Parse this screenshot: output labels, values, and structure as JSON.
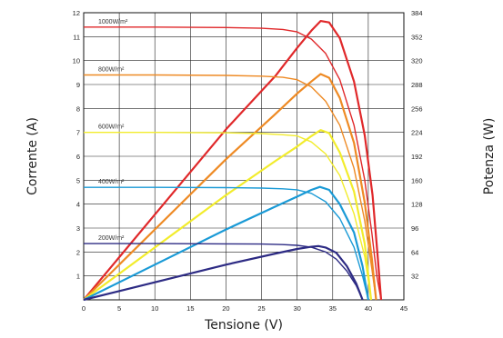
{
  "chart_data": {
    "type": "line",
    "xlabel": "Tensione (V)",
    "ylabel_left": "Corrente (A)",
    "ylabel_right": "Potenza (W)",
    "xlim": [
      0,
      45
    ],
    "ylim_left": [
      0,
      12
    ],
    "ylim_right": [
      0,
      384
    ],
    "x_ticks": [
      0,
      5,
      10,
      15,
      20,
      25,
      30,
      35,
      40,
      45
    ],
    "y_left_ticks": [
      1,
      2,
      3,
      4,
      5,
      6,
      7,
      8,
      9,
      10,
      11,
      12
    ],
    "y_right_ticks": [
      32,
      64,
      96,
      128,
      160,
      192,
      224,
      256,
      288,
      320,
      352,
      384
    ],
    "grid": true,
    "series": [
      {
        "name": "1000W/m²",
        "label": "1000W/m²",
        "color": "#e0282a",
        "current": {
          "x": [
            0,
            10,
            20,
            25,
            28,
            30,
            32,
            34,
            36,
            38,
            39.5,
            40.5,
            41.2,
            41.8
          ],
          "y": [
            11.4,
            11.4,
            11.38,
            11.35,
            11.3,
            11.2,
            10.9,
            10.3,
            9.2,
            7.3,
            5.0,
            2.8,
            1.0,
            0
          ]
        },
        "power": {
          "x": [
            0,
            10,
            20,
            27,
            30,
            32,
            33.3,
            34.5,
            36,
            38,
            39.5,
            40.6,
            41.3,
            41.8
          ],
          "y": [
            0,
            114,
            228,
            300,
            337,
            360,
            373,
            371,
            350,
            292,
            220,
            140,
            60,
            0
          ]
        }
      },
      {
        "name": "800W/m²",
        "label": "800W/m²",
        "color": "#ee8a24",
        "current": {
          "x": [
            0,
            10,
            20,
            25,
            28,
            30,
            32,
            34,
            36,
            38,
            39.5,
            40.5,
            41.1
          ],
          "y": [
            9.4,
            9.4,
            9.38,
            9.35,
            9.3,
            9.2,
            8.9,
            8.3,
            7.3,
            5.5,
            3.3,
            1.3,
            0
          ]
        },
        "power": {
          "x": [
            0,
            10,
            20,
            27,
            30,
            32,
            33.3,
            34.5,
            36,
            38,
            39.5,
            40.5,
            41.1
          ],
          "y": [
            0,
            94,
            188,
            249,
            276,
            292,
            302,
            297,
            270,
            210,
            130,
            55,
            0
          ]
        }
      },
      {
        "name": "600W/m²",
        "label": "600W/m²",
        "color": "#f2ec2c",
        "current": {
          "x": [
            0,
            10,
            20,
            25,
            28,
            30,
            32,
            34,
            36,
            38,
            39.5,
            40.4
          ],
          "y": [
            7.0,
            7.0,
            6.98,
            6.95,
            6.9,
            6.85,
            6.6,
            6.1,
            5.2,
            3.6,
            1.8,
            0
          ]
        },
        "power": {
          "x": [
            0,
            10,
            20,
            27,
            30,
            32,
            33.3,
            34.5,
            36,
            38,
            39.5,
            40.4
          ],
          "y": [
            0,
            70,
            140,
            186,
            205,
            219,
            227,
            223,
            197,
            145,
            75,
            0
          ]
        }
      },
      {
        "name": "400W/m²",
        "label": "400W/m²",
        "color": "#1a9ad6",
        "current": {
          "x": [
            0,
            10,
            20,
            25,
            28,
            30,
            32,
            34,
            36,
            38,
            39.2,
            40
          ],
          "y": [
            4.7,
            4.7,
            4.69,
            4.67,
            4.64,
            4.6,
            4.45,
            4.1,
            3.4,
            2.2,
            1.0,
            0
          ]
        },
        "power": {
          "x": [
            0,
            10,
            20,
            27,
            30,
            32,
            33.2,
            34.5,
            36,
            38,
            39.2,
            40
          ],
          "y": [
            0,
            47,
            94,
            125,
            138,
            147,
            151,
            147,
            128,
            90,
            45,
            0
          ]
        }
      },
      {
        "name": "200W/m²",
        "label": "200W/m²",
        "color": "#2d2b84",
        "current": {
          "x": [
            0,
            10,
            20,
            25,
            28,
            30,
            32,
            34,
            35.5,
            37,
            38.3,
            39.2
          ],
          "y": [
            2.35,
            2.35,
            2.34,
            2.33,
            2.31,
            2.28,
            2.2,
            2.0,
            1.7,
            1.2,
            0.6,
            0
          ]
        },
        "power": {
          "x": [
            0,
            10,
            20,
            27,
            30,
            32,
            33,
            34,
            35.5,
            37,
            38.3,
            39.2
          ],
          "y": [
            0,
            23.5,
            47,
            62,
            68,
            71,
            72,
            70,
            63,
            45,
            22,
            0
          ]
        }
      }
    ]
  }
}
